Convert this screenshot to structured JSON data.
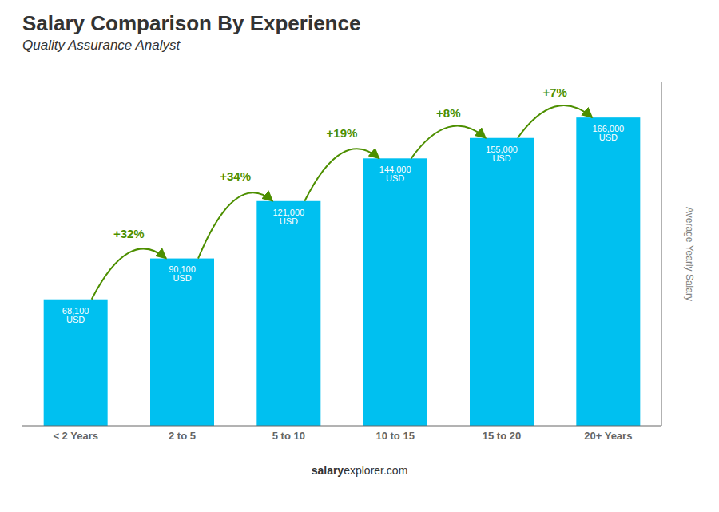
{
  "chart_data": {
    "type": "bar",
    "title": "Salary Comparison By Experience",
    "subtitle": "Quality Assurance Analyst",
    "y_label": "Average Yearly Salary",
    "categories": [
      "< 2 Years",
      "2 to 5",
      "5 to 10",
      "10 to 15",
      "15 to 20",
      "20+ Years"
    ],
    "values": [
      68100,
      90100,
      121000,
      144000,
      155000,
      166000
    ],
    "value_labels": [
      "68,100 USD",
      "90,100 USD",
      "121,000 USD",
      "144,000 USD",
      "155,000 USD",
      "166,000 USD"
    ],
    "data_labels": true,
    "annotations": [
      "+32%",
      "+34%",
      "+19%",
      "+8%",
      "+7%"
    ],
    "footer": [
      "salary",
      "explorer.com"
    ],
    "color": "#00c0f0",
    "ylim": [
      0,
      185000
    ],
    "tick_labels": "x",
    "grid": false
  }
}
